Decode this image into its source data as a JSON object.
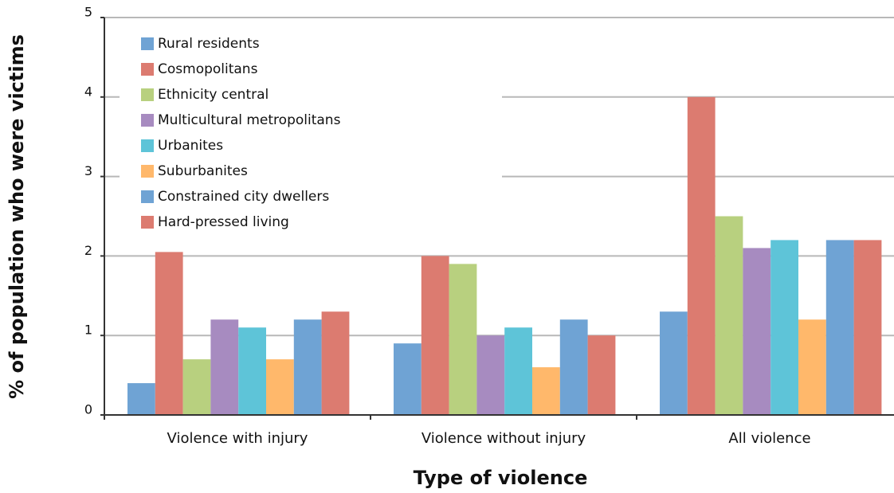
{
  "chart_data": {
    "type": "bar",
    "x_label": "Type of violence",
    "y_label": "% of population who were victims",
    "categories": [
      "Violence with injury",
      "Violence without injury",
      "All violence"
    ],
    "series": [
      {
        "name": "Rural residents",
        "color": "#6fa3d4",
        "values": [
          0.4,
          0.9,
          1.3
        ]
      },
      {
        "name": "Cosmopolitans",
        "color": "#dc7b70",
        "values": [
          2.05,
          2.0,
          4.0
        ]
      },
      {
        "name": "Ethnicity central",
        "color": "#b8d07f",
        "values": [
          0.7,
          1.9,
          2.5
        ]
      },
      {
        "name": "Multicultural metropolitans",
        "color": "#a78bc0",
        "values": [
          1.2,
          1.0,
          2.1
        ]
      },
      {
        "name": "Urbanites",
        "color": "#5ec4d8",
        "values": [
          1.1,
          1.1,
          2.2
        ]
      },
      {
        "name": "Suburbanites",
        "color": "#ffb86b",
        "values": [
          0.7,
          0.6,
          1.2
        ]
      },
      {
        "name": "Constrained city dwellers",
        "color": "#6fa3d4",
        "values": [
          1.2,
          1.2,
          2.2
        ]
      },
      {
        "name": "Hard-pressed living",
        "color": "#dc7b70",
        "values": [
          1.3,
          1.0,
          2.2
        ]
      }
    ],
    "ylim": [
      0,
      5
    ],
    "yticks": [
      0,
      1,
      2,
      3,
      4,
      5
    ],
    "grid": true,
    "legend": "upper left"
  }
}
